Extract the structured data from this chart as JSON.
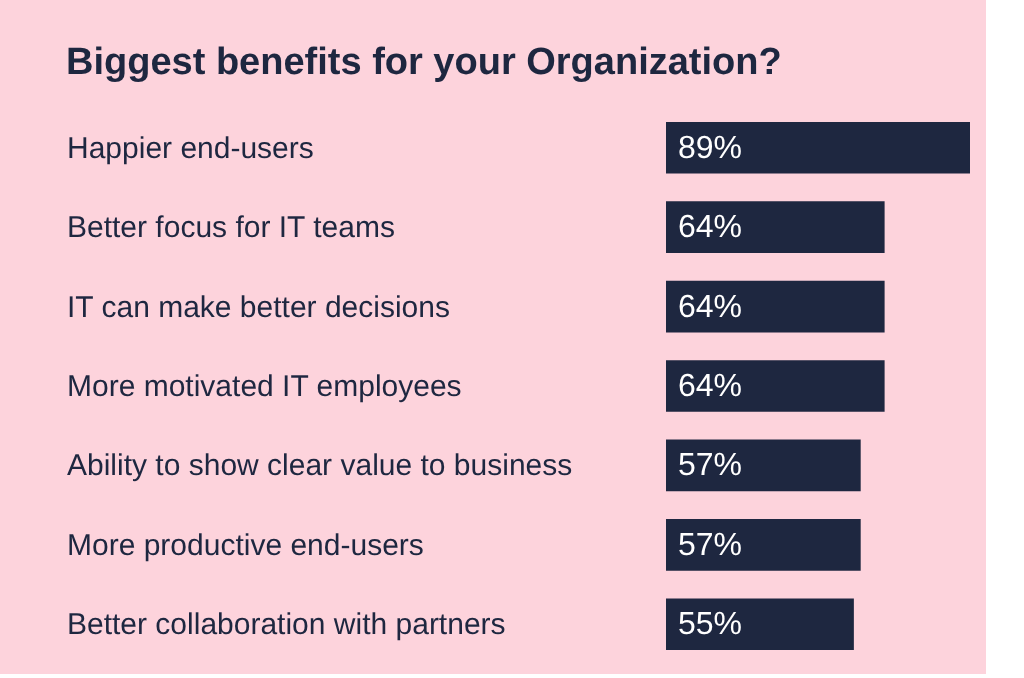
{
  "chart_data": {
    "type": "bar",
    "orientation": "horizontal",
    "title": "Biggest benefits for your Organization?",
    "categories": [
      "Happier end-users",
      "Better focus for IT teams",
      "IT can make better decisions",
      "More motivated IT employees",
      "Ability to show clear value to business",
      "More productive end-users",
      "Better collaboration with partners"
    ],
    "values": [
      89,
      64,
      64,
      64,
      57,
      57,
      55
    ],
    "value_labels": [
      "89%",
      "64%",
      "64%",
      "64%",
      "57%",
      "57%",
      "55%"
    ],
    "color": "#1e2740",
    "tick_labels": "y"
  }
}
